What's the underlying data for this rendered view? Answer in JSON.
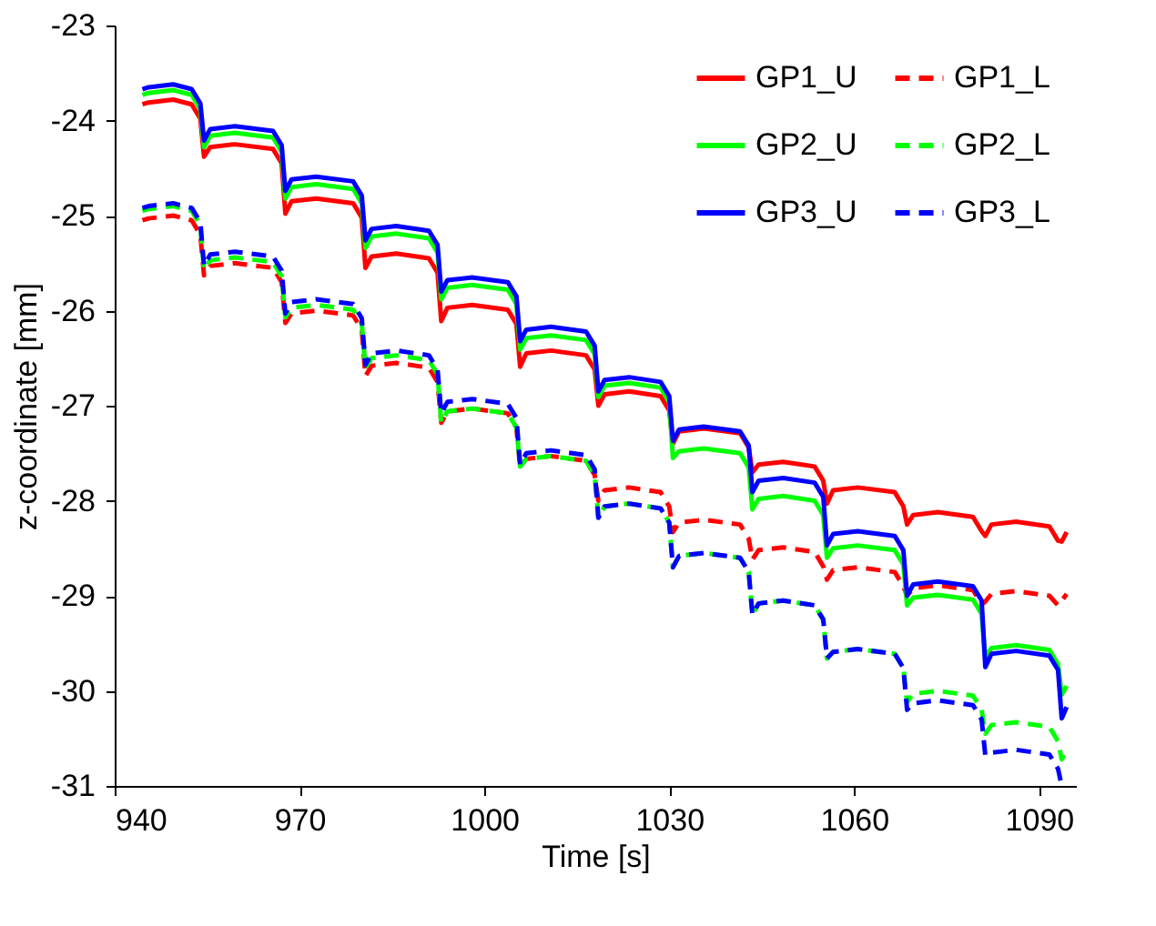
{
  "chart_data": {
    "type": "line",
    "xlabel": "Time [s]",
    "ylabel": "z-coordinate [mm]",
    "xlim": [
      940,
      1096
    ],
    "xticks": [
      940,
      970,
      1000,
      1030,
      1060,
      1090
    ],
    "ylim": [
      -31,
      -23
    ],
    "yticks": [
      -31,
      -30,
      -29,
      -28,
      -27,
      -26,
      -25,
      -24,
      -23
    ],
    "grid": false,
    "legend": "top right",
    "marker": "none",
    "x": [
      944.5,
      945.5,
      949.5,
      952.5,
      953.9,
      954.5,
      955.5,
      959.5,
      965.7,
      967.1,
      967.7,
      968.7,
      972.7,
      978.7,
      980.1,
      980.7,
      981.7,
      985.7,
      991.0,
      992.4,
      993.0,
      994.0,
      998.0,
      1003.8,
      1005.2,
      1005.8,
      1006.8,
      1010.8,
      1016.5,
      1017.9,
      1018.5,
      1019.5,
      1023.5,
      1028.6,
      1030.0,
      1030.6,
      1031.6,
      1035.6,
      1041.5,
      1042.9,
      1043.5,
      1044.5,
      1048.5,
      1053.6,
      1055.0,
      1055.6,
      1056.6,
      1060.6,
      1066.6,
      1068.0,
      1068.6,
      1069.6,
      1073.6,
      1079.3,
      1080.7,
      1081.3,
      1082.3,
      1086.3,
      1091.7,
      1093.1,
      1093.7,
      1094.5
    ],
    "series": [
      {
        "name": "GP1_U",
        "color": "#ff0000",
        "line_style": "solid",
        "values": [
          -23.83,
          -23.81,
          -23.78,
          -23.83,
          -23.98,
          -24.38,
          -24.28,
          -24.25,
          -24.3,
          -24.45,
          -24.98,
          -24.85,
          -24.82,
          -24.87,
          -25.02,
          -25.55,
          -25.43,
          -25.4,
          -25.45,
          -25.6,
          -26.11,
          -25.97,
          -25.94,
          -25.99,
          -26.14,
          -26.59,
          -26.45,
          -26.42,
          -26.47,
          -26.62,
          -27.0,
          -26.88,
          -26.85,
          -26.9,
          -27.05,
          -27.4,
          -27.27,
          -27.24,
          -27.29,
          -27.44,
          -27.7,
          -27.62,
          -27.59,
          -27.64,
          -27.79,
          -28.03,
          -27.89,
          -27.86,
          -27.91,
          -28.06,
          -28.25,
          -28.15,
          -28.12,
          -28.17,
          -28.32,
          -28.37,
          -28.25,
          -28.22,
          -28.27,
          -28.42,
          -28.43,
          -28.33
        ]
      },
      {
        "name": "GP1_L",
        "color": "#ff0000",
        "line_style": "dashed",
        "values": [
          -25.05,
          -25.03,
          -25.0,
          -25.05,
          -25.2,
          -25.63,
          -25.53,
          -25.5,
          -25.55,
          -25.7,
          -26.13,
          -26.03,
          -26.0,
          -26.05,
          -26.2,
          -26.69,
          -26.58,
          -26.55,
          -26.6,
          -26.75,
          -27.18,
          -27.06,
          -27.03,
          -27.08,
          -27.23,
          -27.64,
          -27.56,
          -27.53,
          -27.58,
          -27.73,
          -28.0,
          -27.89,
          -27.86,
          -27.91,
          -28.06,
          -28.33,
          -28.23,
          -28.2,
          -28.25,
          -28.4,
          -28.62,
          -28.52,
          -28.49,
          -28.54,
          -28.69,
          -28.83,
          -28.73,
          -28.7,
          -28.75,
          -28.9,
          -29.0,
          -28.92,
          -28.89,
          -28.94,
          -29.09,
          -29.06,
          -28.98,
          -28.95,
          -29.0,
          -29.1,
          -29.05,
          -28.98
        ]
      },
      {
        "name": "GP2_U",
        "color": "#00ff00",
        "line_style": "solid",
        "values": [
          -23.73,
          -23.71,
          -23.68,
          -23.73,
          -23.88,
          -24.28,
          -24.16,
          -24.13,
          -24.18,
          -24.33,
          -24.82,
          -24.7,
          -24.67,
          -24.72,
          -24.87,
          -25.34,
          -25.22,
          -25.19,
          -25.24,
          -25.39,
          -25.88,
          -25.76,
          -25.73,
          -25.78,
          -25.93,
          -26.41,
          -26.29,
          -26.26,
          -26.31,
          -26.46,
          -26.91,
          -26.79,
          -26.76,
          -26.81,
          -26.96,
          -27.55,
          -27.48,
          -27.45,
          -27.5,
          -27.65,
          -28.09,
          -27.98,
          -27.95,
          -28.0,
          -28.15,
          -28.6,
          -28.5,
          -28.47,
          -28.52,
          -28.67,
          -29.1,
          -29.02,
          -28.99,
          -29.04,
          -29.19,
          -29.65,
          -29.55,
          -29.52,
          -29.57,
          -29.72,
          -30.04,
          -29.95
        ]
      },
      {
        "name": "GP2_L",
        "color": "#00ff00",
        "line_style": "dashed",
        "values": [
          -24.95,
          -24.93,
          -24.9,
          -24.95,
          -25.1,
          -25.57,
          -25.47,
          -25.44,
          -25.49,
          -25.64,
          -26.07,
          -25.97,
          -25.94,
          -25.99,
          -26.14,
          -26.6,
          -26.5,
          -26.47,
          -26.52,
          -26.67,
          -27.18,
          -27.06,
          -27.03,
          -27.08,
          -27.23,
          -27.64,
          -27.56,
          -27.53,
          -27.58,
          -27.73,
          -28.18,
          -28.06,
          -28.03,
          -28.08,
          -28.23,
          -28.7,
          -28.58,
          -28.55,
          -28.6,
          -28.75,
          -29.2,
          -29.08,
          -29.05,
          -29.1,
          -29.25,
          -29.66,
          -29.59,
          -29.56,
          -29.61,
          -29.76,
          -30.12,
          -30.03,
          -30.0,
          -30.05,
          -30.2,
          -30.45,
          -30.36,
          -30.33,
          -30.38,
          -30.53,
          -30.72,
          -30.62
        ]
      },
      {
        "name": "GP3_U",
        "color": "#0000ff",
        "line_style": "solid",
        "values": [
          -23.67,
          -23.65,
          -23.62,
          -23.67,
          -23.82,
          -24.21,
          -24.09,
          -24.06,
          -24.11,
          -24.26,
          -24.74,
          -24.62,
          -24.59,
          -24.64,
          -24.79,
          -25.26,
          -25.14,
          -25.11,
          -25.16,
          -25.31,
          -25.8,
          -25.68,
          -25.65,
          -25.7,
          -25.85,
          -26.32,
          -26.2,
          -26.17,
          -26.22,
          -26.37,
          -26.85,
          -26.73,
          -26.7,
          -26.75,
          -26.9,
          -27.37,
          -27.25,
          -27.22,
          -27.27,
          -27.42,
          -27.91,
          -27.79,
          -27.76,
          -27.81,
          -27.96,
          -28.47,
          -28.35,
          -28.32,
          -28.37,
          -28.52,
          -29.0,
          -28.88,
          -28.85,
          -28.9,
          -29.05,
          -29.75,
          -29.61,
          -29.58,
          -29.63,
          -29.78,
          -30.29,
          -30.17
        ]
      },
      {
        "name": "GP3_L",
        "color": "#0000ff",
        "line_style": "dashed",
        "values": [
          -24.92,
          -24.9,
          -24.87,
          -24.92,
          -25.07,
          -25.53,
          -25.41,
          -25.38,
          -25.43,
          -25.58,
          -26.03,
          -25.91,
          -25.88,
          -25.93,
          -26.08,
          -26.57,
          -26.45,
          -26.42,
          -26.47,
          -26.62,
          -27.08,
          -26.96,
          -26.93,
          -26.98,
          -27.13,
          -27.62,
          -27.5,
          -27.47,
          -27.52,
          -27.67,
          -28.18,
          -28.06,
          -28.03,
          -28.08,
          -28.23,
          -28.7,
          -28.58,
          -28.55,
          -28.6,
          -28.75,
          -29.2,
          -29.08,
          -29.05,
          -29.1,
          -29.25,
          -29.66,
          -29.59,
          -29.56,
          -29.61,
          -29.76,
          -30.2,
          -30.13,
          -30.1,
          -30.15,
          -30.3,
          -30.68,
          -30.65,
          -30.62,
          -30.67,
          -30.82,
          -31.0,
          null
        ]
      }
    ]
  }
}
